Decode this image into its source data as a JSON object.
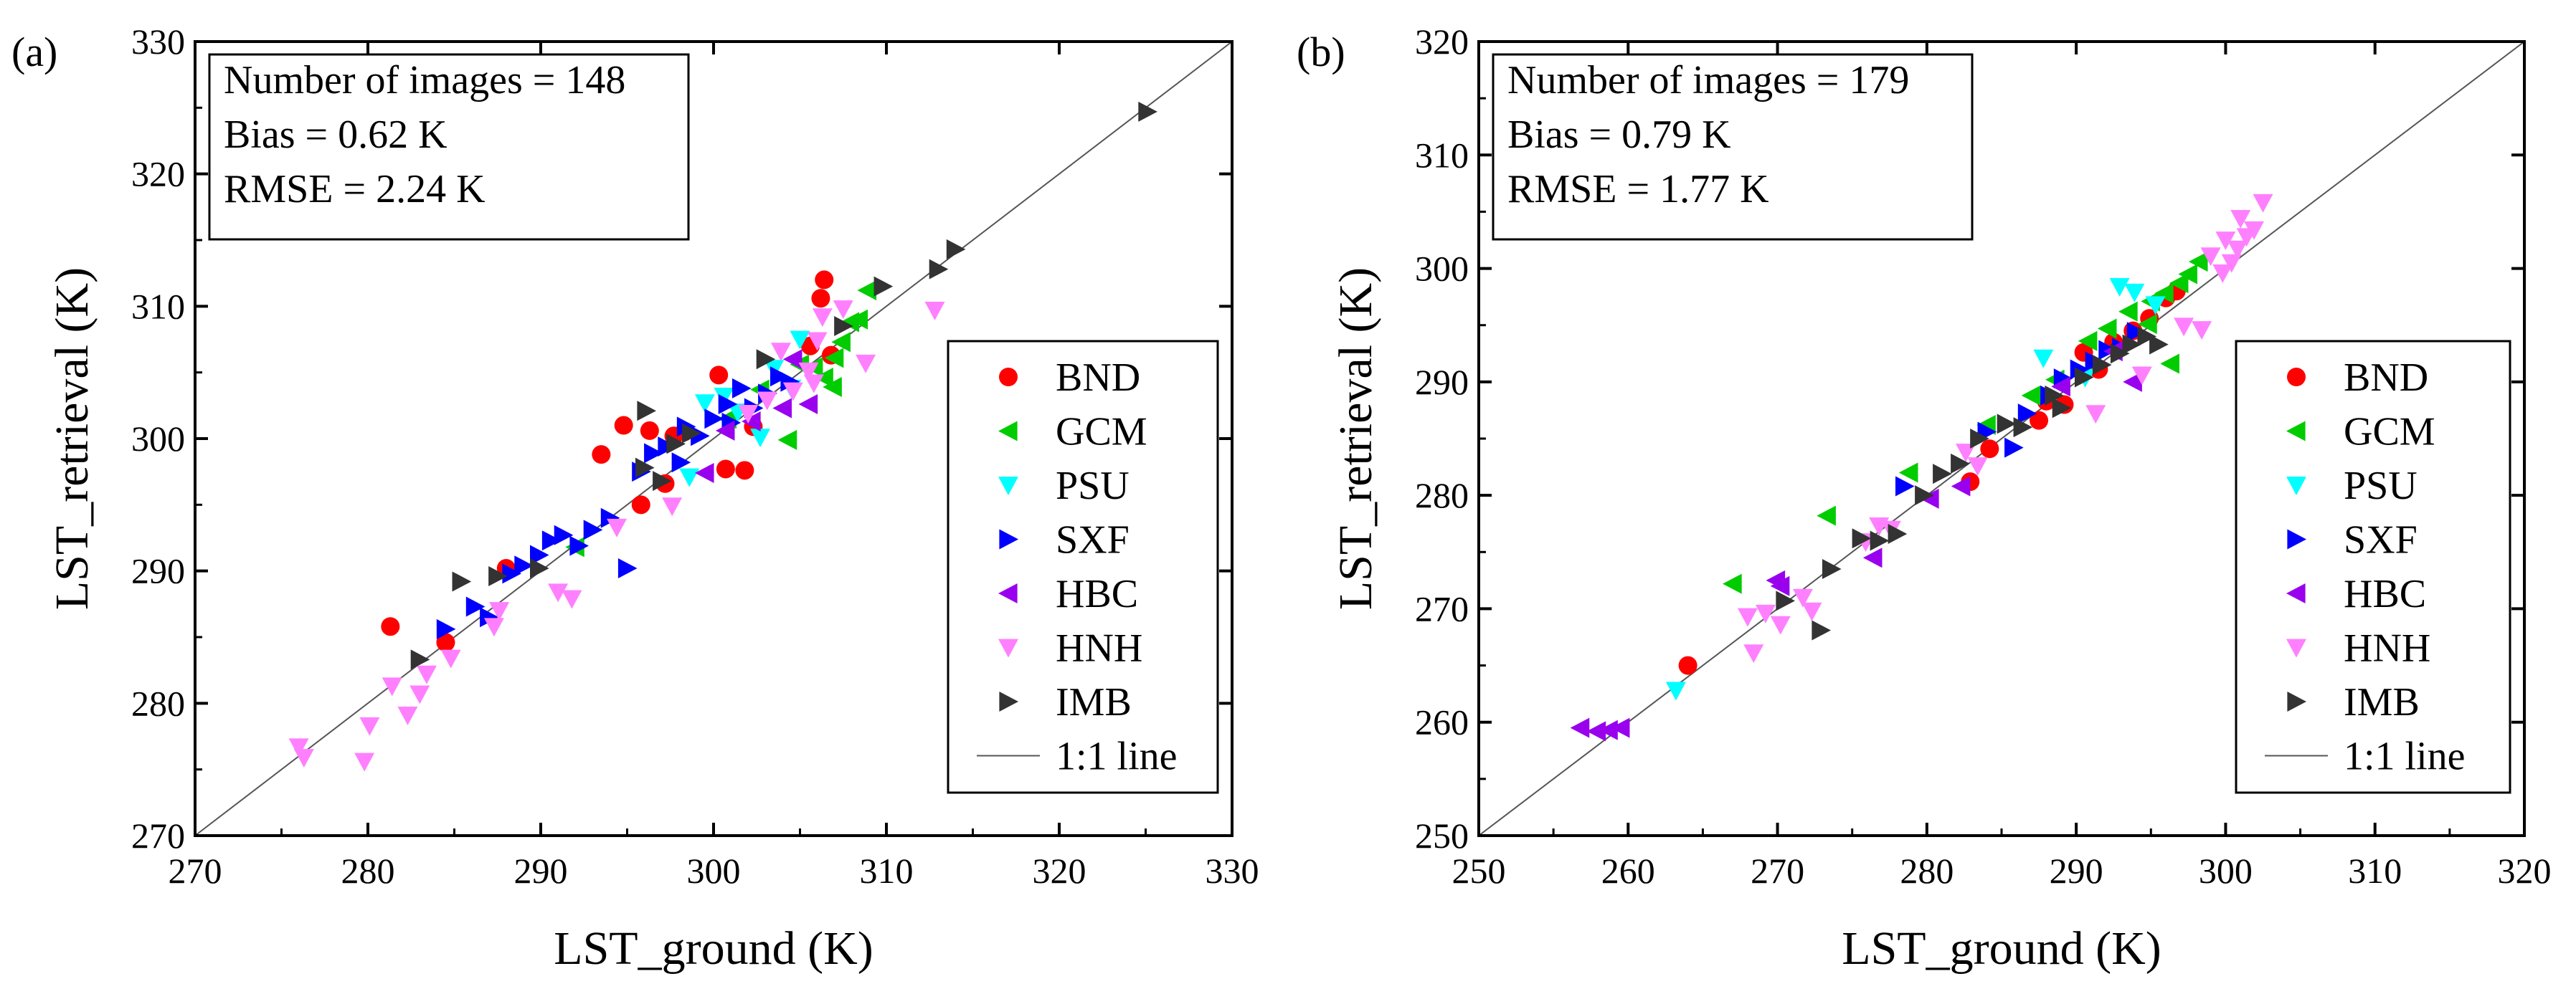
{
  "chart_data": [
    {
      "type": "scatter",
      "panel_label": "(a)",
      "xlabel": "LST_ground (K)",
      "ylabel": "LST_retrieval (K)",
      "xlim": [
        270,
        330
      ],
      "ylim": [
        270,
        330
      ],
      "xticks": [
        270,
        280,
        290,
        300,
        310,
        320,
        330
      ],
      "yticks": [
        270,
        280,
        290,
        300,
        310,
        320,
        330
      ],
      "grid": false,
      "stats": [
        "Number of images = 148",
        "Bias = 0.62 K",
        "RMSE = 2.24 K"
      ],
      "legend_position": "bottom-right",
      "one_to_one_label": "1:1 line",
      "series": [
        {
          "name": "BND",
          "marker": "circle",
          "color": "#ff0000",
          "points": [
            [
              281.3,
              285.8
            ],
            [
              284.5,
              284.6
            ],
            [
              288.0,
              290.2
            ],
            [
              293.5,
              298.8
            ],
            [
              294.8,
              301.0
            ],
            [
              295.8,
              295.0
            ],
            [
              296.3,
              300.6
            ],
            [
              297.2,
              296.6
            ],
            [
              297.7,
              300.2
            ],
            [
              298.3,
              300.5
            ],
            [
              300.3,
              304.8
            ],
            [
              300.7,
              297.7
            ],
            [
              301.8,
              297.6
            ],
            [
              302.3,
              300.9
            ],
            [
              306.4,
              312.0
            ],
            [
              306.2,
              310.6
            ],
            [
              306.8,
              306.3
            ],
            [
              305.6,
              307.0
            ]
          ]
        },
        {
          "name": "GCM",
          "marker": "triangle-left",
          "color": "#00cc00",
          "points": [
            [
              292.0,
              291.8
            ],
            [
              300.8,
              301.5
            ],
            [
              302.7,
              303.7
            ],
            [
              304.3,
              299.9
            ],
            [
              305.0,
              305.6
            ],
            [
              305.8,
              305.4
            ],
            [
              306.4,
              304.6
            ],
            [
              307.0,
              306.1
            ],
            [
              307.4,
              307.3
            ],
            [
              307.9,
              308.8
            ],
            [
              308.4,
              309.0
            ],
            [
              308.9,
              311.2
            ],
            [
              306.9,
              303.9
            ]
          ]
        },
        {
          "name": "PSU",
          "marker": "triangle-down",
          "color": "#00ffff",
          "points": [
            [
              298.6,
              297.1
            ],
            [
              299.5,
              302.7
            ],
            [
              300.6,
              303.2
            ],
            [
              301.4,
              302.0
            ],
            [
              302.7,
              300.1
            ],
            [
              303.5,
              305.3
            ],
            [
              304.5,
              303.8
            ],
            [
              305.0,
              307.5
            ]
          ]
        },
        {
          "name": "SXF",
          "marker": "triangle-right",
          "color": "#0000ff",
          "points": [
            [
              284.5,
              285.6
            ],
            [
              286.2,
              287.3
            ],
            [
              287.0,
              286.5
            ],
            [
              288.3,
              289.8
            ],
            [
              289.0,
              290.4
            ],
            [
              289.9,
              291.2
            ],
            [
              290.6,
              292.3
            ],
            [
              291.3,
              292.7
            ],
            [
              292.2,
              291.9
            ],
            [
              293.0,
              293.1
            ],
            [
              294.0,
              294.0
            ],
            [
              295.0,
              290.2
            ],
            [
              295.8,
              297.5
            ],
            [
              296.5,
              298.9
            ],
            [
              297.3,
              299.4
            ],
            [
              298.4,
              300.9
            ],
            [
              299.2,
              300.2
            ],
            [
              300.0,
              301.5
            ],
            [
              300.8,
              302.6
            ],
            [
              301.6,
              303.8
            ],
            [
              302.3,
              302.3
            ],
            [
              303.1,
              303.4
            ],
            [
              303.8,
              304.7
            ],
            [
              304.4,
              304.3
            ],
            [
              298.1,
              298.2
            ],
            [
              301.0,
              301.2
            ]
          ]
        },
        {
          "name": "HBC",
          "marker": "triangle-left",
          "color": "#9900ee",
          "points": [
            [
              299.5,
              297.4
            ],
            [
              300.7,
              300.6
            ],
            [
              302.2,
              301.3
            ],
            [
              304.0,
              302.3
            ],
            [
              304.6,
              306.0
            ],
            [
              305.5,
              302.6
            ]
          ]
        },
        {
          "name": "HNH",
          "marker": "triangle-down",
          "color": "#ff80ff",
          "points": [
            [
              276.0,
              276.7
            ],
            [
              276.3,
              275.9
            ],
            [
              279.8,
              275.6
            ],
            [
              280.1,
              278.3
            ],
            [
              281.4,
              281.3
            ],
            [
              282.3,
              279.1
            ],
            [
              283.0,
              280.7
            ],
            [
              283.4,
              282.2
            ],
            [
              284.8,
              283.4
            ],
            [
              287.3,
              285.8
            ],
            [
              287.6,
              287.0
            ],
            [
              291.0,
              288.4
            ],
            [
              291.8,
              287.9
            ],
            [
              294.4,
              293.3
            ],
            [
              297.6,
              294.9
            ],
            [
              302.0,
              301.9
            ],
            [
              303.1,
              302.9
            ],
            [
              303.9,
              306.6
            ],
            [
              304.6,
              303.6
            ],
            [
              305.5,
              305.1
            ],
            [
              306.3,
              309.2
            ],
            [
              307.5,
              309.8
            ],
            [
              308.8,
              305.7
            ],
            [
              312.8,
              309.7
            ],
            [
              305.8,
              304.2
            ],
            [
              306.0,
              307.4
            ]
          ]
        },
        {
          "name": "IMB",
          "marker": "triangle-right",
          "color": "#333333",
          "points": [
            [
              283.0,
              283.3
            ],
            [
              285.4,
              289.2
            ],
            [
              287.5,
              289.6
            ],
            [
              289.9,
              290.2
            ],
            [
              296.1,
              302.1
            ],
            [
              296.0,
              297.8
            ],
            [
              297.0,
              296.8
            ],
            [
              297.8,
              299.6
            ],
            [
              298.7,
              300.4
            ],
            [
              303.0,
              306.0
            ],
            [
              307.5,
              308.5
            ],
            [
              309.8,
              311.5
            ],
            [
              313.0,
              312.8
            ],
            [
              314.0,
              314.3
            ],
            [
              325.1,
              324.7
            ]
          ]
        }
      ]
    },
    {
      "type": "scatter",
      "panel_label": "(b)",
      "xlabel": "LST_ground (K)",
      "ylabel": "LST_retrieval (K)",
      "xlim": [
        250,
        320
      ],
      "ylim": [
        250,
        320
      ],
      "xticks": [
        250,
        260,
        270,
        280,
        290,
        300,
        310,
        320
      ],
      "yticks": [
        250,
        260,
        270,
        280,
        290,
        300,
        310,
        320
      ],
      "grid": false,
      "stats": [
        "Number of images = 179",
        "Bias = 0.79 K",
        "RMSE = 1.77 K"
      ],
      "legend_position": "bottom-right",
      "one_to_one_label": "1:1 line",
      "series": [
        {
          "name": "BND",
          "marker": "circle",
          "color": "#ff0000",
          "points": [
            [
              264.0,
              265.0
            ],
            [
              282.9,
              281.2
            ],
            [
              284.2,
              284.1
            ],
            [
              287.5,
              286.6
            ],
            [
              288.0,
              288.3
            ],
            [
              289.2,
              288.0
            ],
            [
              290.5,
              292.6
            ],
            [
              291.5,
              291.1
            ],
            [
              292.5,
              293.5
            ],
            [
              293.8,
              294.5
            ],
            [
              294.9,
              295.6
            ],
            [
              296.0,
              297.4
            ],
            [
              296.7,
              298.0
            ]
          ]
        },
        {
          "name": "GCM",
          "marker": "triangle-left",
          "color": "#00cc00",
          "points": [
            [
              267.0,
              272.2
            ],
            [
              273.3,
              278.2
            ],
            [
              278.8,
              282.0
            ],
            [
              284.0,
              286.2
            ],
            [
              287.0,
              288.8
            ],
            [
              288.6,
              290.2
            ],
            [
              290.8,
              293.6
            ],
            [
              292.1,
              294.7
            ],
            [
              293.5,
              296.2
            ],
            [
              295.0,
              297.1
            ],
            [
              295.9,
              297.8
            ],
            [
              296.3,
              291.6
            ],
            [
              296.9,
              298.7
            ],
            [
              297.5,
              299.5
            ],
            [
              298.2,
              300.6
            ],
            [
              294.8,
              295.1
            ]
          ]
        },
        {
          "name": "PSU",
          "marker": "triangle-down",
          "color": "#00ffff",
          "points": [
            [
              263.2,
              262.8
            ],
            [
              287.8,
              292.1
            ],
            [
              292.9,
              298.4
            ],
            [
              293.9,
              297.9
            ],
            [
              295.3,
              296.8
            ],
            [
              290.6,
              290.4
            ]
          ]
        },
        {
          "name": "SXF",
          "marker": "triangle-right",
          "color": "#0000ff",
          "points": [
            [
              278.5,
              280.8
            ],
            [
              284.0,
              285.6
            ],
            [
              285.8,
              284.2
            ],
            [
              286.7,
              287.2
            ],
            [
              288.2,
              288.8
            ],
            [
              289.1,
              290.3
            ],
            [
              290.2,
              291.1
            ],
            [
              291.2,
              291.8
            ],
            [
              292.1,
              292.8
            ],
            [
              293.0,
              293.0
            ],
            [
              294.0,
              294.4
            ]
          ]
        },
        {
          "name": "HBC",
          "marker": "triangle-left",
          "color": "#9900ee",
          "points": [
            [
              256.8,
              259.5
            ],
            [
              257.9,
              259.2
            ],
            [
              258.7,
              259.3
            ],
            [
              259.5,
              259.5
            ],
            [
              269.9,
              272.5
            ],
            [
              270.2,
              272.0
            ],
            [
              276.4,
              274.5
            ],
            [
              280.2,
              279.7
            ],
            [
              282.3,
              280.8
            ],
            [
              289.0,
              289.6
            ],
            [
              293.8,
              290.0
            ],
            [
              292.5,
              292.7
            ]
          ]
        },
        {
          "name": "HNH",
          "marker": "triangle-down",
          "color": "#ff80ff",
          "points": [
            [
              268.0,
              269.3
            ],
            [
              268.4,
              266.1
            ],
            [
              269.2,
              269.6
            ],
            [
              270.2,
              268.6
            ],
            [
              271.7,
              271.0
            ],
            [
              272.3,
              269.8
            ],
            [
              275.9,
              275.9
            ],
            [
              276.8,
              277.3
            ],
            [
              277.6,
              277.0
            ],
            [
              282.6,
              283.8
            ],
            [
              283.4,
              282.6
            ],
            [
              291.3,
              287.2
            ],
            [
              294.4,
              290.6
            ],
            [
              297.2,
              294.9
            ],
            [
              298.4,
              294.6
            ],
            [
              299.0,
              301.1
            ],
            [
              299.8,
              299.6
            ],
            [
              300.4,
              300.5
            ],
            [
              300.8,
              301.7
            ],
            [
              301.4,
              302.8
            ],
            [
              301.9,
              303.4
            ],
            [
              302.5,
              305.8
            ],
            [
              300.0,
              302.5
            ],
            [
              301.0,
              304.4
            ]
          ]
        },
        {
          "name": "IMB",
          "marker": "triangle-right",
          "color": "#333333",
          "points": [
            [
              270.5,
              270.7
            ],
            [
              272.9,
              268.1
            ],
            [
              273.6,
              273.5
            ],
            [
              275.6,
              276.2
            ],
            [
              276.8,
              276.0
            ],
            [
              278.0,
              276.6
            ],
            [
              279.8,
              280.0
            ],
            [
              281.0,
              281.9
            ],
            [
              282.2,
              282.8
            ],
            [
              283.5,
              285.0
            ],
            [
              285.3,
              286.3
            ],
            [
              286.4,
              286.0
            ],
            [
              288.5,
              288.8
            ],
            [
              289.0,
              287.7
            ],
            [
              290.5,
              290.4
            ],
            [
              291.7,
              291.5
            ],
            [
              292.9,
              292.5
            ],
            [
              293.7,
              293.3
            ],
            [
              294.7,
              294.0
            ],
            [
              295.5,
              293.3
            ]
          ]
        }
      ]
    }
  ]
}
